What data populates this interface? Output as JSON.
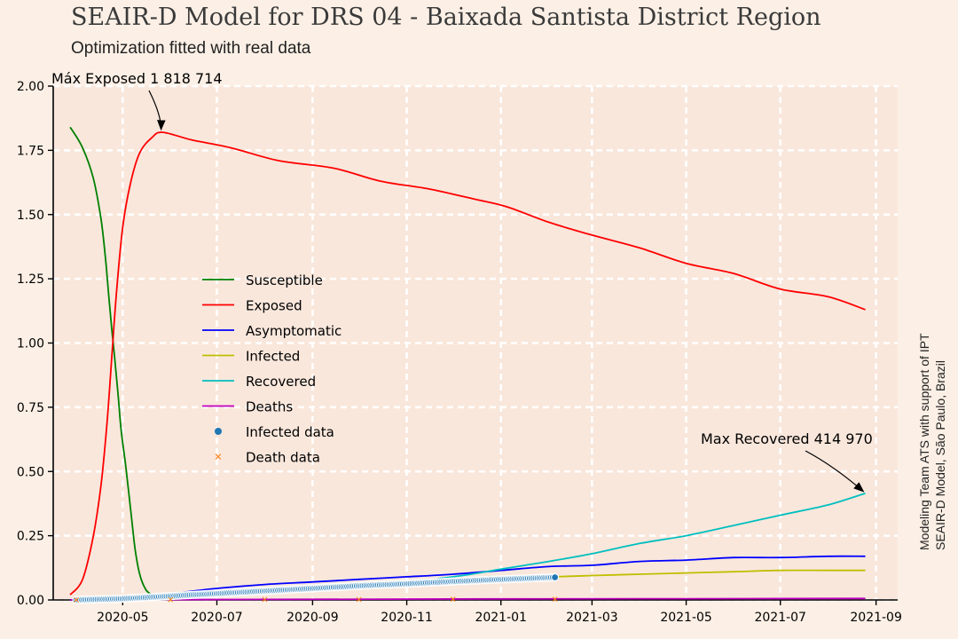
{
  "title": "SEAIR-D Model for DRS 04 - Baixada Santista District Region",
  "subtitle": "Optimization fitted with real data",
  "side_note": {
    "line1": "Modeling Team ATS with support of IPT",
    "line2": "SEAIR-D Model, São Paulo, Brazil"
  },
  "colors": {
    "Susceptible": "#008000",
    "Exposed": "#ff0000",
    "Asymptomatic": "#0000ff",
    "Infected": "#bfbf00",
    "Recovered": "#00bfbf",
    "Deaths": "#bf00bf",
    "Infected data": "#1f77b4",
    "Death data": "#ff7f0e",
    "background": "#fcf0e6",
    "plot_background": "#f9e7dc"
  },
  "chart_data": {
    "type": "line",
    "title": "SEAIR-D Model for DRS 04 - Baixada Santista District Region",
    "subtitle": "Optimization fitted with real data",
    "xlabel": "",
    "ylabel": "",
    "x_type": "date",
    "xlim": [
      "2020-03-17",
      "2021-09-15"
    ],
    "ylim": [
      0,
      2.0
    ],
    "grid": true,
    "legend_position": "center-left",
    "x_ticks": [
      "2020-05",
      "2020-07",
      "2020-09",
      "2020-11",
      "2021-01",
      "2021-03",
      "2021-05",
      "2021-07",
      "2021-09"
    ],
    "x_tick_dates": [
      "2020-05-01",
      "2020-07-01",
      "2020-09-01",
      "2020-11-01",
      "2021-01-01",
      "2021-03-01",
      "2021-05-01",
      "2021-07-01",
      "2021-09-01"
    ],
    "y_ticks": [
      "0.00",
      "0.25",
      "0.50",
      "0.75",
      "1.00",
      "1.25",
      "1.50",
      "1.75",
      "2.00"
    ],
    "y_tick_values": [
      0,
      0.25,
      0.5,
      0.75,
      1.0,
      1.25,
      1.5,
      1.75,
      2.0
    ],
    "series": [
      {
        "name": "Susceptible",
        "style": "line",
        "points": [
          [
            "2020-03-28",
            1.84
          ],
          [
            "2020-04-05",
            1.76
          ],
          [
            "2020-04-12",
            1.64
          ],
          [
            "2020-04-17",
            1.48
          ],
          [
            "2020-04-20",
            1.32
          ],
          [
            "2020-04-22",
            1.18
          ],
          [
            "2020-04-24",
            1.05
          ],
          [
            "2020-04-26",
            0.93
          ],
          [
            "2020-04-28",
            0.8
          ],
          [
            "2020-04-30",
            0.66
          ],
          [
            "2020-05-03",
            0.52
          ],
          [
            "2020-05-06",
            0.36
          ],
          [
            "2020-05-09",
            0.2
          ],
          [
            "2020-05-12",
            0.1
          ],
          [
            "2020-05-16",
            0.04
          ],
          [
            "2020-05-20",
            0.02
          ]
        ]
      },
      {
        "name": "Exposed",
        "style": "line",
        "points": [
          [
            "2020-03-28",
            0.02
          ],
          [
            "2020-04-05",
            0.08
          ],
          [
            "2020-04-12",
            0.25
          ],
          [
            "2020-04-17",
            0.45
          ],
          [
            "2020-04-21",
            0.7
          ],
          [
            "2020-04-24",
            0.95
          ],
          [
            "2020-04-27",
            1.2
          ],
          [
            "2020-05-01",
            1.45
          ],
          [
            "2020-05-06",
            1.62
          ],
          [
            "2020-05-12",
            1.74
          ],
          [
            "2020-05-20",
            1.8
          ],
          [
            "2020-05-27",
            1.82
          ],
          [
            "2020-06-15",
            1.79
          ],
          [
            "2020-07-10",
            1.76
          ],
          [
            "2020-08-10",
            1.71
          ],
          [
            "2020-09-15",
            1.68
          ],
          [
            "2020-10-15",
            1.63
          ],
          [
            "2020-11-15",
            1.6
          ],
          [
            "2020-12-15",
            1.56
          ],
          [
            "2021-01-05",
            1.53
          ],
          [
            "2021-02-01",
            1.47
          ],
          [
            "2021-03-01",
            1.42
          ],
          [
            "2021-04-01",
            1.37
          ],
          [
            "2021-05-01",
            1.31
          ],
          [
            "2021-06-01",
            1.27
          ],
          [
            "2021-07-01",
            1.21
          ],
          [
            "2021-08-01",
            1.18
          ],
          [
            "2021-08-25",
            1.13
          ]
        ]
      },
      {
        "name": "Asymptomatic",
        "style": "line",
        "points": [
          [
            "2020-03-28",
            0.0
          ],
          [
            "2020-05-01",
            0.01
          ],
          [
            "2020-06-01",
            0.025
          ],
          [
            "2020-07-01",
            0.045
          ],
          [
            "2020-08-01",
            0.06
          ],
          [
            "2020-09-01",
            0.07
          ],
          [
            "2020-10-01",
            0.08
          ],
          [
            "2020-11-01",
            0.09
          ],
          [
            "2020-12-01",
            0.1
          ],
          [
            "2021-01-01",
            0.115
          ],
          [
            "2021-02-01",
            0.13
          ],
          [
            "2021-03-01",
            0.135
          ],
          [
            "2021-04-01",
            0.15
          ],
          [
            "2021-05-01",
            0.155
          ],
          [
            "2021-06-01",
            0.165
          ],
          [
            "2021-07-01",
            0.165
          ],
          [
            "2021-08-01",
            0.17
          ],
          [
            "2021-08-25",
            0.17
          ]
        ]
      },
      {
        "name": "Infected",
        "style": "line",
        "points": [
          [
            "2021-02-05",
            0.09
          ],
          [
            "2021-03-01",
            0.095
          ],
          [
            "2021-04-01",
            0.1
          ],
          [
            "2021-05-01",
            0.105
          ],
          [
            "2021-06-01",
            0.11
          ],
          [
            "2021-07-01",
            0.115
          ],
          [
            "2021-08-01",
            0.115
          ],
          [
            "2021-08-25",
            0.115
          ]
        ]
      },
      {
        "name": "Recovered",
        "style": "line",
        "points": [
          [
            "2020-06-01",
            0.005
          ],
          [
            "2020-08-01",
            0.025
          ],
          [
            "2020-10-01",
            0.05
          ],
          [
            "2020-12-01",
            0.09
          ],
          [
            "2021-01-01",
            0.12
          ],
          [
            "2021-02-01",
            0.15
          ],
          [
            "2021-03-01",
            0.18
          ],
          [
            "2021-04-01",
            0.22
          ],
          [
            "2021-05-01",
            0.25
          ],
          [
            "2021-06-01",
            0.29
          ],
          [
            "2021-07-01",
            0.33
          ],
          [
            "2021-08-01",
            0.37
          ],
          [
            "2021-08-25",
            0.415
          ]
        ]
      },
      {
        "name": "Deaths",
        "style": "line",
        "points": [
          [
            "2020-03-28",
            0.0
          ],
          [
            "2020-08-01",
            0.002
          ],
          [
            "2021-01-01",
            0.004
          ],
          [
            "2021-05-01",
            0.005
          ],
          [
            "2021-08-25",
            0.006
          ]
        ]
      },
      {
        "name": "Infected data",
        "style": "scatter",
        "marker": "circle",
        "points": [
          [
            "2020-04-01",
            0.0
          ],
          [
            "2020-05-01",
            0.005
          ],
          [
            "2020-06-01",
            0.015
          ],
          [
            "2020-07-01",
            0.025
          ],
          [
            "2020-08-01",
            0.035
          ],
          [
            "2020-09-01",
            0.045
          ],
          [
            "2020-10-01",
            0.055
          ],
          [
            "2020-11-01",
            0.063
          ],
          [
            "2020-12-01",
            0.072
          ],
          [
            "2021-01-01",
            0.08
          ],
          [
            "2021-02-05",
            0.088
          ]
        ]
      },
      {
        "name": "Death data",
        "style": "scatter",
        "marker": "x",
        "points": [
          [
            "2020-04-01",
            0.0
          ],
          [
            "2020-06-01",
            0.001
          ],
          [
            "2020-08-01",
            0.002
          ],
          [
            "2020-10-01",
            0.002
          ],
          [
            "2020-12-01",
            0.003
          ],
          [
            "2021-02-05",
            0.003
          ]
        ]
      }
    ],
    "annotations": [
      {
        "text": "Máx Exposed 1 818 714",
        "x": "2020-05-27",
        "y": 1.82
      },
      {
        "text": "Max Recovered 414 970",
        "x": "2021-08-25",
        "y": 0.415
      }
    ]
  }
}
